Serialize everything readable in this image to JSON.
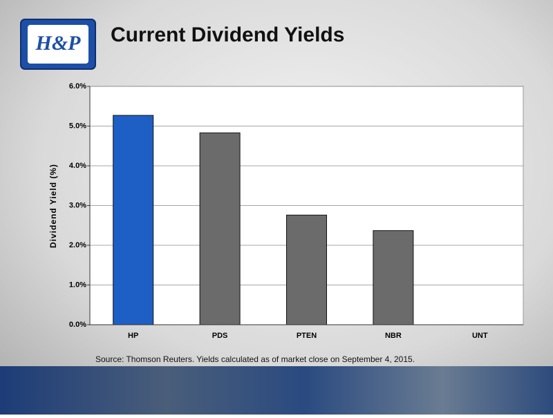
{
  "logo": {
    "text": "H&P"
  },
  "chart_data": {
    "type": "bar",
    "title": "Current Dividend Yields",
    "y_label": "Dividend Yield (%)",
    "categories": [
      "HP",
      "PDS",
      "PTEN",
      "NBR",
      "UNT"
    ],
    "values": [
      5.27,
      4.83,
      2.76,
      2.37,
      0
    ],
    "colors": [
      "#1e5fc6",
      "#6b6b6b",
      "#6b6b6b",
      "#6b6b6b",
      "#6b6b6b"
    ],
    "ylim": [
      0,
      6
    ],
    "yticks": [
      {
        "value": 0,
        "label": "0.0%"
      },
      {
        "value": 1,
        "label": "1.0%"
      },
      {
        "value": 2,
        "label": "2.0%"
      },
      {
        "value": 3,
        "label": "3.0%"
      },
      {
        "value": 4,
        "label": "4.0%"
      },
      {
        "value": 5,
        "label": "5.0%"
      },
      {
        "value": 6,
        "label": "6.0%"
      }
    ],
    "grid": true,
    "source": "Source: Thomson Reuters.  Yields calculated as of market close on September 4, 2015."
  }
}
